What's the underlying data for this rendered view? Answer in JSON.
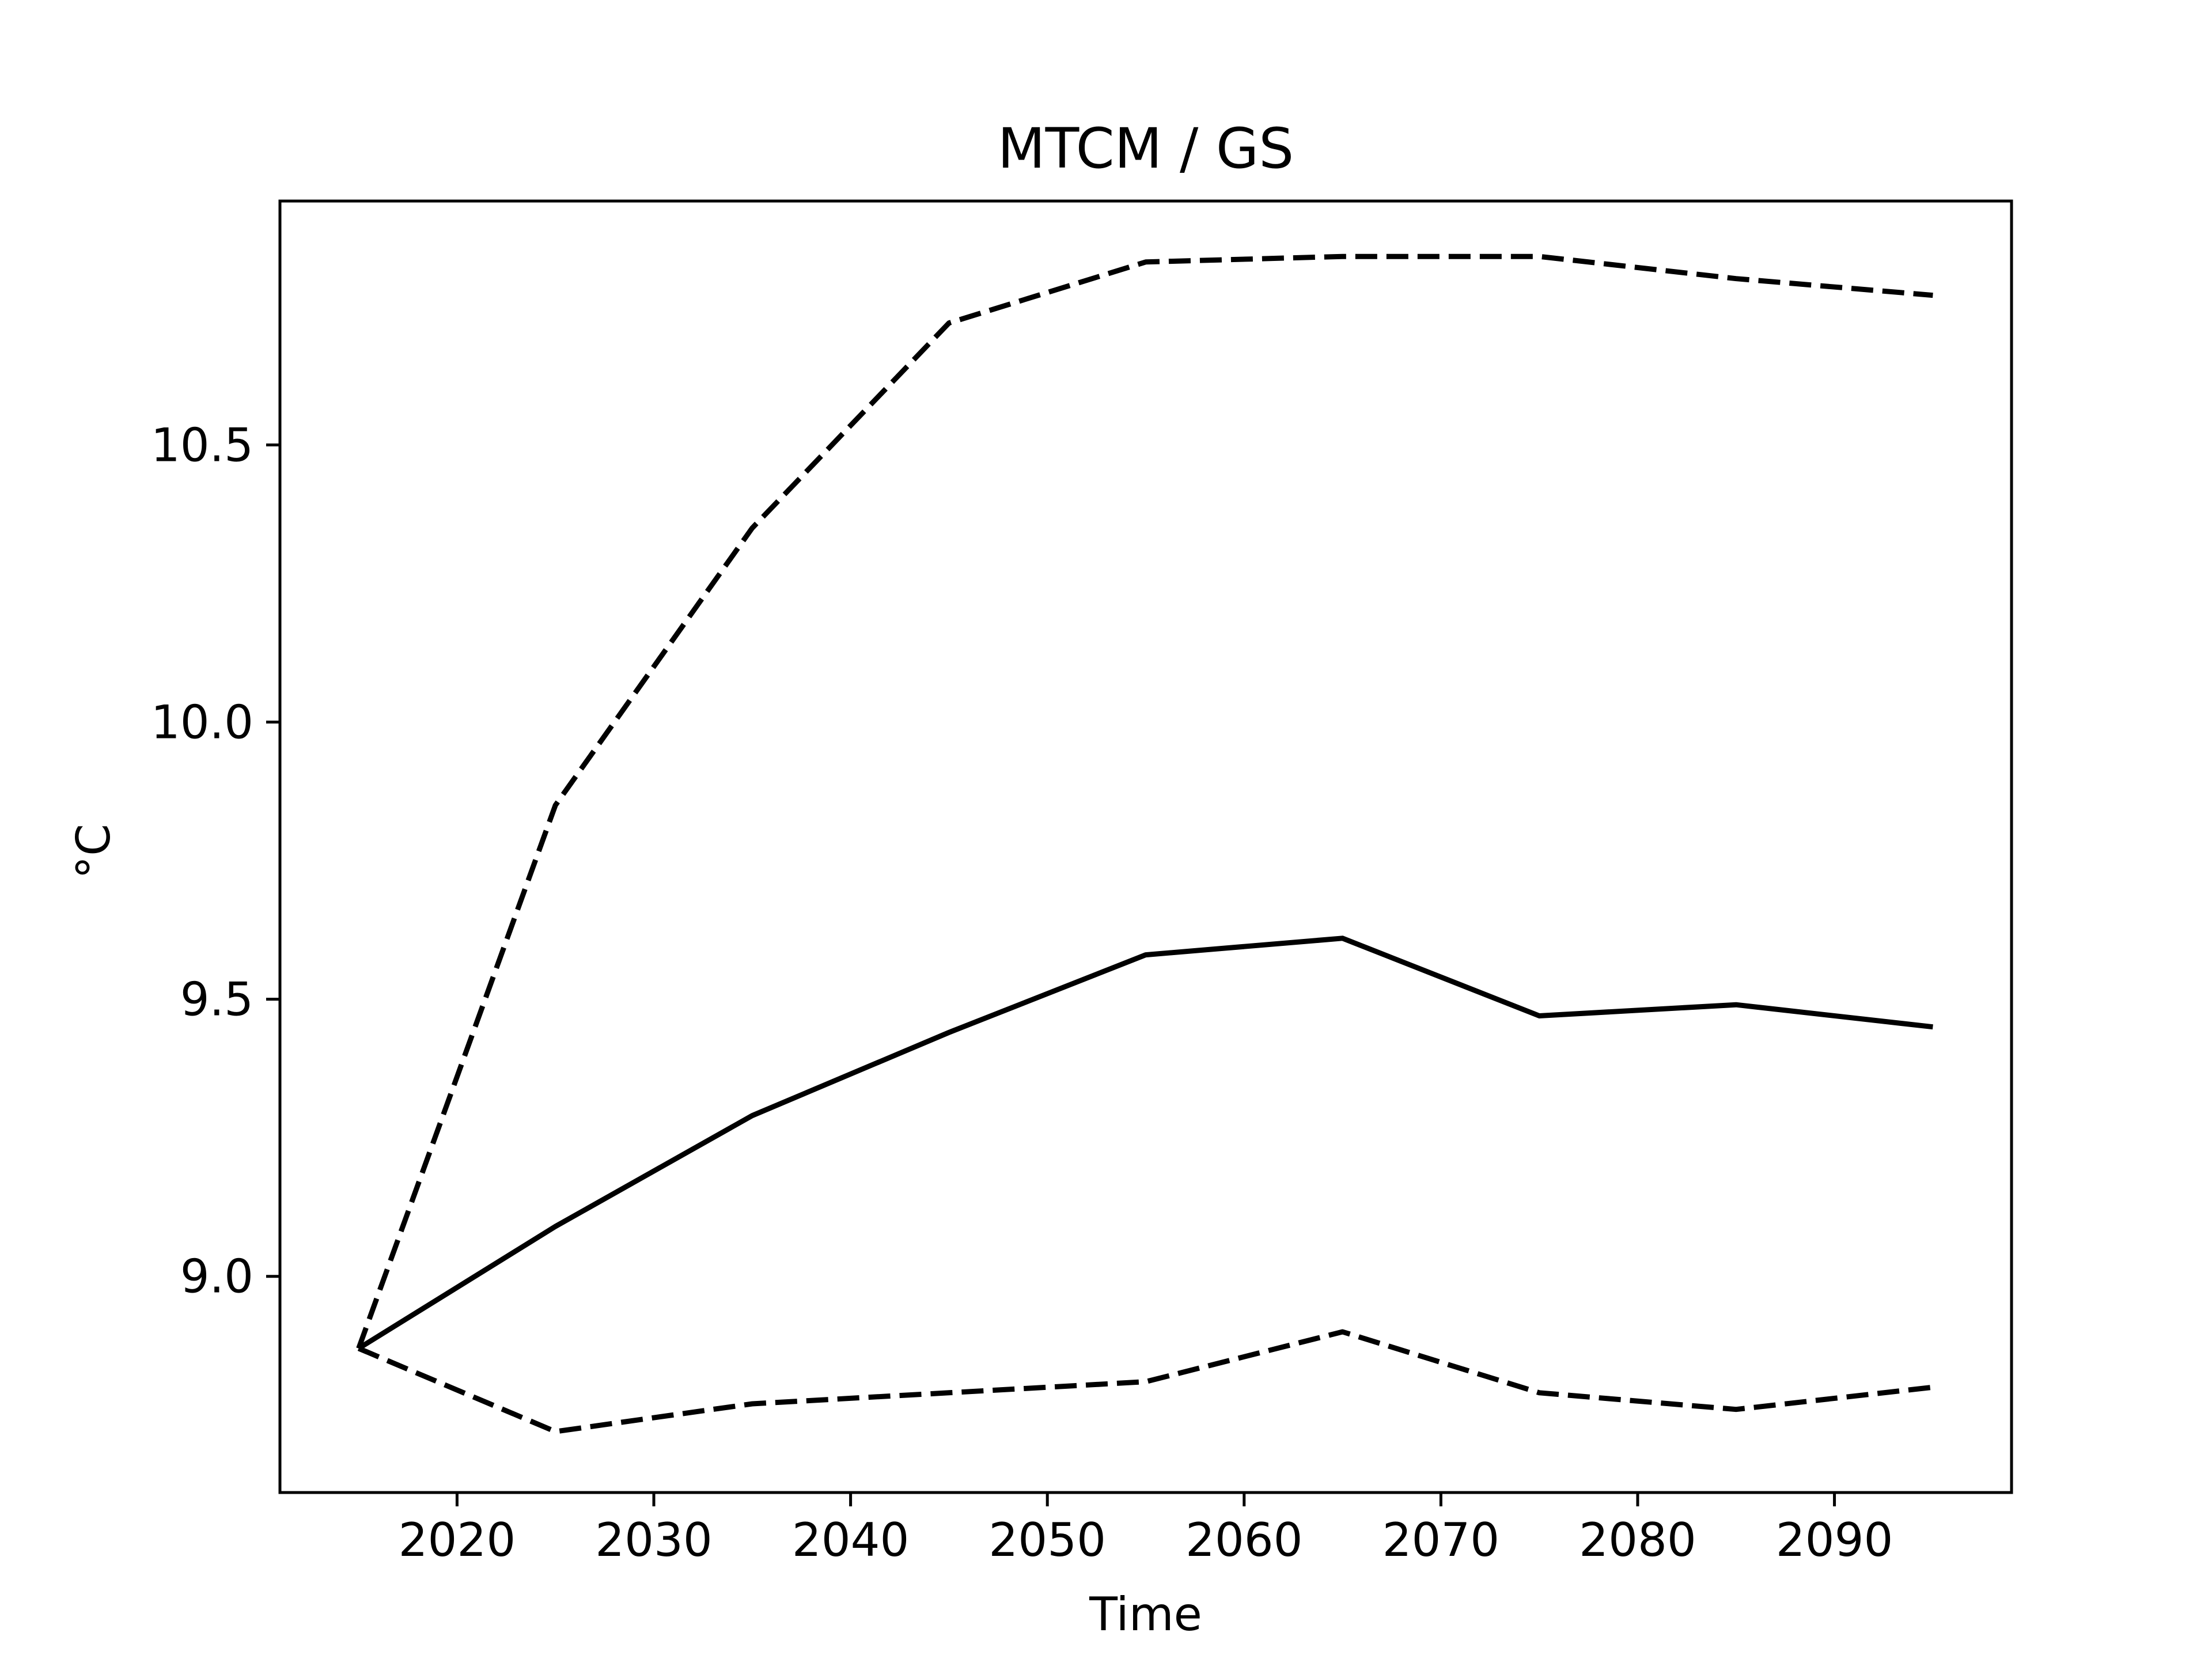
{
  "chart_data": {
    "type": "line",
    "title": "MTCM / GS",
    "xlabel": "Time",
    "ylabel": "°C",
    "xlim": [
      2011,
      2099
    ],
    "ylim": [
      8.61,
      10.94
    ],
    "grid": false,
    "x_ticks": [
      2020,
      2030,
      2040,
      2050,
      2060,
      2070,
      2080,
      2090
    ],
    "y_ticks": [
      9.0,
      9.5,
      10.0,
      10.5
    ],
    "x_tick_labels": [
      "2020",
      "2030",
      "2040",
      "2050",
      "2060",
      "2070",
      "2080",
      "2090"
    ],
    "y_tick_labels": [
      "9.0",
      "9.5",
      "10.0",
      "10.5"
    ],
    "x": [
      2015,
      2025,
      2035,
      2045,
      2055,
      2065,
      2075,
      2085,
      2095
    ],
    "series": [
      {
        "style": "dashed",
        "color": "#000000",
        "values": [
          8.87,
          9.85,
          10.35,
          10.72,
          10.83,
          10.84,
          10.84,
          10.8,
          10.77
        ]
      },
      {
        "style": "solid",
        "color": "#000000",
        "values": [
          8.87,
          9.09,
          9.29,
          9.44,
          9.58,
          9.61,
          9.47,
          9.49,
          9.45
        ]
      },
      {
        "style": "dashed",
        "color": "#000000",
        "values": [
          8.87,
          8.72,
          8.77,
          8.79,
          8.81,
          8.9,
          8.79,
          8.76,
          8.8
        ]
      }
    ]
  }
}
